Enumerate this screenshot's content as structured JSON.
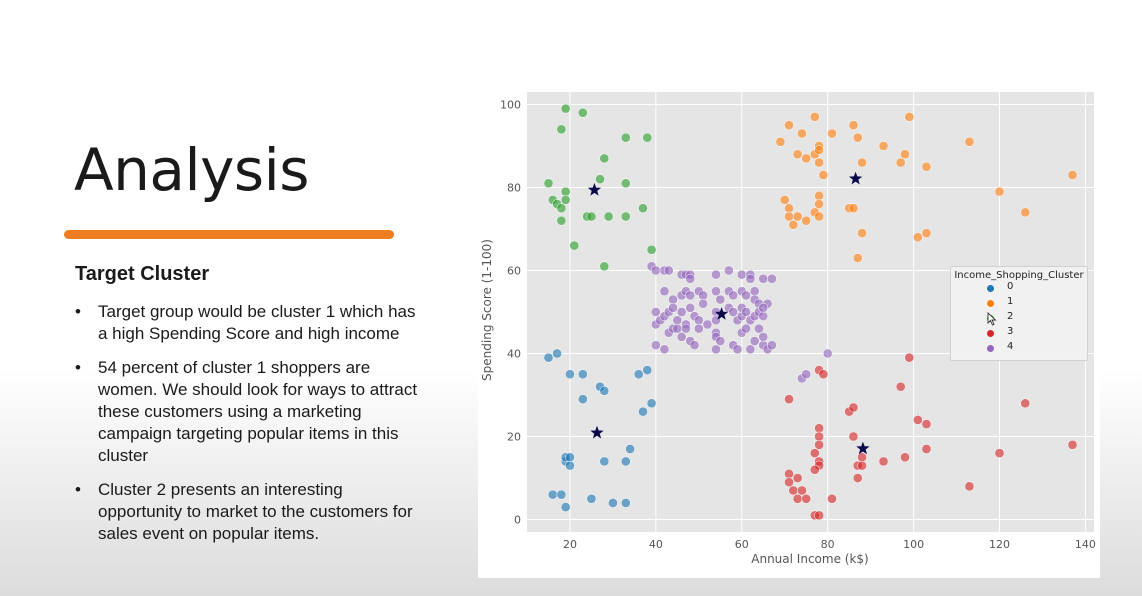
{
  "slide": {
    "title": "Analysis",
    "section_heading": "Target Cluster",
    "bullets": [
      "Target group would be cluster 1 which has a high Spending Score and high income",
      "54 percent of cluster 1  shoppers are women. We should look for ways to attract these customers using a marketing campaign targeting popular items in this cluster",
      "Cluster 2 presents an interesting opportunity to market to the customers for sales event on popular items."
    ],
    "accent_color": "#ee7d22"
  },
  "chart_data": {
    "type": "scatter",
    "title": "",
    "xlabel": "Annual Income (k$)",
    "ylabel": "Spending Score (1-100)",
    "xlim": [
      10,
      142
    ],
    "ylim": [
      -3,
      103
    ],
    "xticks": [
      20,
      40,
      60,
      80,
      100,
      120,
      140
    ],
    "yticks": [
      0,
      20,
      40,
      60,
      80,
      100
    ],
    "grid": true,
    "background": "#e5e5e5",
    "legend": {
      "title": "Income_Shopping_Cluster",
      "placement": "right",
      "entries": [
        "0",
        "1",
        "2",
        "3",
        "4"
      ]
    },
    "series": [
      {
        "name": "0",
        "color": "#1f77b4",
        "points": [
          [
            15,
            39
          ],
          [
            17,
            40
          ],
          [
            20,
            35
          ],
          [
            23,
            35
          ],
          [
            23,
            29
          ],
          [
            27,
            32
          ],
          [
            28,
            31
          ],
          [
            36,
            35
          ],
          [
            38,
            36
          ],
          [
            39,
            28
          ],
          [
            37,
            26
          ],
          [
            19,
            14
          ],
          [
            19,
            15
          ],
          [
            20,
            13
          ],
          [
            20,
            15
          ],
          [
            28,
            14
          ],
          [
            33,
            14
          ],
          [
            34,
            17
          ],
          [
            16,
            6
          ],
          [
            18,
            6
          ],
          [
            19,
            3
          ],
          [
            25,
            5
          ],
          [
            30,
            4
          ],
          [
            33,
            4
          ]
        ]
      },
      {
        "name": "1",
        "color": "#ff7f0e",
        "points": [
          [
            69,
            91
          ],
          [
            71,
            95
          ],
          [
            73,
            88
          ],
          [
            74,
            93
          ],
          [
            75,
            87
          ],
          [
            77,
            97
          ],
          [
            77,
            88
          ],
          [
            78,
            90
          ],
          [
            78,
            89
          ],
          [
            78,
            86
          ],
          [
            81,
            93
          ],
          [
            86,
            95
          ],
          [
            87,
            92
          ],
          [
            88,
            86
          ],
          [
            93,
            90
          ],
          [
            97,
            86
          ],
          [
            98,
            88
          ],
          [
            99,
            97
          ],
          [
            103,
            85
          ],
          [
            113,
            91
          ],
          [
            70,
            77
          ],
          [
            71,
            75
          ],
          [
            71,
            73
          ],
          [
            72,
            71
          ],
          [
            73,
            73
          ],
          [
            75,
            72
          ],
          [
            77,
            74
          ],
          [
            78,
            78
          ],
          [
            78,
            76
          ],
          [
            78,
            73
          ],
          [
            79,
            83
          ],
          [
            85,
            75
          ],
          [
            86,
            75
          ],
          [
            87,
            63
          ],
          [
            88,
            69
          ],
          [
            101,
            68
          ],
          [
            103,
            69
          ],
          [
            120,
            79
          ],
          [
            126,
            74
          ],
          [
            137,
            83
          ]
        ]
      },
      {
        "name": "2",
        "color": "#2ca02c",
        "points": [
          [
            19,
            99
          ],
          [
            23,
            98
          ],
          [
            18,
            94
          ],
          [
            33,
            92
          ],
          [
            38,
            92
          ],
          [
            28,
            87
          ],
          [
            15,
            81
          ],
          [
            19,
            79
          ],
          [
            27,
            82
          ],
          [
            33,
            81
          ],
          [
            16,
            77
          ],
          [
            17,
            76
          ],
          [
            18,
            75
          ],
          [
            19,
            77
          ],
          [
            24,
            73
          ],
          [
            25,
            73
          ],
          [
            29,
            73
          ],
          [
            33,
            73
          ],
          [
            37,
            75
          ],
          [
            18,
            72
          ],
          [
            21,
            66
          ],
          [
            39,
            65
          ],
          [
            28,
            61
          ]
        ]
      },
      {
        "name": "3",
        "color": "#d62728",
        "points": [
          [
            71,
            29
          ],
          [
            78,
            36
          ],
          [
            79,
            35
          ],
          [
            85,
            26
          ],
          [
            86,
            27
          ],
          [
            97,
            32
          ],
          [
            99,
            39
          ],
          [
            101,
            24
          ],
          [
            103,
            23
          ],
          [
            126,
            28
          ],
          [
            78,
            22
          ],
          [
            78,
            20
          ],
          [
            78,
            18
          ],
          [
            77,
            16
          ],
          [
            78,
            14
          ],
          [
            78,
            13
          ],
          [
            86,
            20
          ],
          [
            87,
            13
          ],
          [
            88,
            13
          ],
          [
            88,
            15
          ],
          [
            93,
            14
          ],
          [
            98,
            15
          ],
          [
            103,
            17
          ],
          [
            120,
            16
          ],
          [
            137,
            18
          ],
          [
            71,
            11
          ],
          [
            71,
            9
          ],
          [
            73,
            10
          ],
          [
            72,
            7
          ],
          [
            73,
            5
          ],
          [
            74,
            7
          ],
          [
            75,
            5
          ],
          [
            77,
            12
          ],
          [
            81,
            5
          ],
          [
            87,
            10
          ],
          [
            113,
            8
          ],
          [
            77,
            1
          ],
          [
            78,
            1
          ]
        ]
      },
      {
        "name": "4",
        "color": "#9467bd",
        "points": [
          [
            39,
            61
          ],
          [
            40,
            60
          ],
          [
            42,
            60
          ],
          [
            43,
            60
          ],
          [
            46,
            59
          ],
          [
            47,
            59
          ],
          [
            48,
            59
          ],
          [
            48,
            58
          ],
          [
            54,
            59
          ],
          [
            57,
            60
          ],
          [
            60,
            59
          ],
          [
            62,
            59
          ],
          [
            62,
            58
          ],
          [
            63,
            55
          ],
          [
            65,
            58
          ],
          [
            67,
            58
          ],
          [
            42,
            55
          ],
          [
            44,
            53
          ],
          [
            46,
            54
          ],
          [
            47,
            55
          ],
          [
            48,
            54
          ],
          [
            50,
            55
          ],
          [
            51,
            54
          ],
          [
            54,
            55
          ],
          [
            55,
            53
          ],
          [
            57,
            55
          ],
          [
            58,
            54
          ],
          [
            60,
            55
          ],
          [
            61,
            54
          ],
          [
            63,
            53
          ],
          [
            64,
            52
          ],
          [
            66,
            52
          ],
          [
            40,
            47
          ],
          [
            40,
            50
          ],
          [
            41,
            48
          ],
          [
            42,
            49
          ],
          [
            43,
            50
          ],
          [
            44,
            51
          ],
          [
            45,
            48
          ],
          [
            46,
            50
          ],
          [
            47,
            47
          ],
          [
            48,
            51
          ],
          [
            49,
            49
          ],
          [
            50,
            48
          ],
          [
            51,
            52
          ],
          [
            52,
            47
          ],
          [
            54,
            50
          ],
          [
            54,
            48
          ],
          [
            57,
            51
          ],
          [
            58,
            50
          ],
          [
            59,
            48
          ],
          [
            60,
            49
          ],
          [
            60,
            51
          ],
          [
            61,
            50
          ],
          [
            62,
            48
          ],
          [
            63,
            49
          ],
          [
            64,
            50
          ],
          [
            65,
            49
          ],
          [
            65,
            51
          ],
          [
            40,
            42
          ],
          [
            42,
            41
          ],
          [
            43,
            45
          ],
          [
            44,
            46
          ],
          [
            45,
            46
          ],
          [
            46,
            44
          ],
          [
            47,
            46
          ],
          [
            48,
            43
          ],
          [
            49,
            42
          ],
          [
            50,
            46
          ],
          [
            54,
            45
          ],
          [
            54,
            44
          ],
          [
            54,
            41
          ],
          [
            55,
            43
          ],
          [
            58,
            42
          ],
          [
            59,
            41
          ],
          [
            60,
            45
          ],
          [
            61,
            46
          ],
          [
            62,
            41
          ],
          [
            63,
            43
          ],
          [
            64,
            46
          ],
          [
            65,
            42
          ],
          [
            65,
            44
          ],
          [
            66,
            41
          ],
          [
            67,
            42
          ],
          [
            74,
            34
          ],
          [
            75,
            35
          ],
          [
            80,
            40
          ]
        ]
      }
    ],
    "centroids": {
      "color": "#0a0a4a",
      "points": [
        [
          25.7,
          79.4
        ],
        [
          86.5,
          82.1
        ],
        [
          26.3,
          20.9
        ],
        [
          88.2,
          17.1
        ],
        [
          55.3,
          49.5
        ]
      ]
    }
  }
}
